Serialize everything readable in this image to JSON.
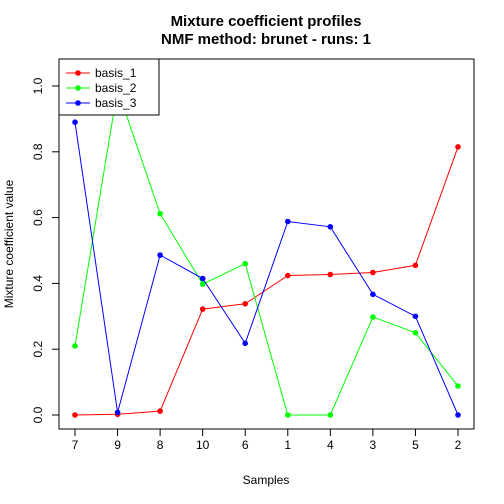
{
  "chart_data": {
    "type": "line",
    "title": "Mixture coefficient profiles",
    "subtitle": "NMF method: brunet - runs: 1",
    "xlabel": "Samples",
    "ylabel": "Mixture coefficient value",
    "categories": [
      "7",
      "9",
      "8",
      "10",
      "6",
      "1",
      "4",
      "3",
      "5",
      "2"
    ],
    "ylim": [
      0,
      1.0
    ],
    "yticks": [
      "0.0",
      "0.2",
      "0.4",
      "0.6",
      "0.8",
      "1.0"
    ],
    "legend_position": "top-left",
    "grid": false,
    "series": [
      {
        "name": "basis_1",
        "color": "#ff0000",
        "values": [
          0.0,
          0.002,
          0.012,
          0.322,
          0.338,
          0.424,
          0.427,
          0.433,
          0.455,
          0.815
        ]
      },
      {
        "name": "basis_2",
        "color": "#00ff00",
        "values": [
          0.21,
          0.99,
          0.612,
          0.398,
          0.46,
          0.0,
          0.0,
          0.298,
          0.25,
          0.088
        ]
      },
      {
        "name": "basis_3",
        "color": "#0000ff",
        "values": [
          0.89,
          0.008,
          0.486,
          0.415,
          0.218,
          0.588,
          0.572,
          0.367,
          0.3,
          0.0
        ]
      }
    ]
  }
}
